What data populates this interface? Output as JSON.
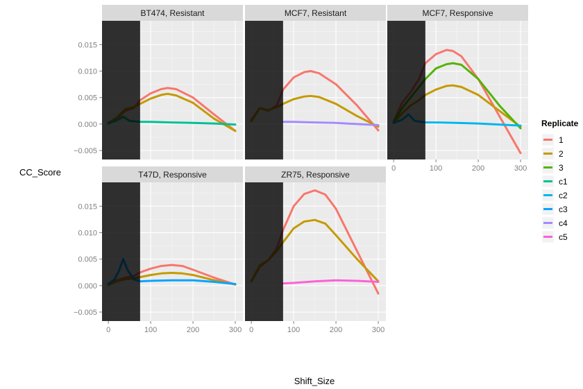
{
  "chart_data": {
    "type": "line",
    "xlabel": "Shift_Size",
    "ylabel": "CC_Score",
    "xlim": [
      -15,
      318
    ],
    "ylim": [
      -0.0067,
      0.0195
    ],
    "x_ticks": [
      0,
      100,
      200,
      300
    ],
    "y_ticks": [
      -0.005,
      0.0,
      0.005,
      0.01,
      0.015
    ],
    "y_tick_labels": [
      "−0.005",
      "0.000",
      "0.005",
      "0.010",
      "0.015"
    ],
    "shaded_region": [
      -15,
      75
    ],
    "grid": true,
    "legend": {
      "title": "Replicate",
      "position": "right",
      "entries": [
        {
          "name": "1",
          "color": "#F8766D"
        },
        {
          "name": "2",
          "color": "#C49A00"
        },
        {
          "name": "3",
          "color": "#53B400"
        },
        {
          "name": "c1",
          "color": "#00C094"
        },
        {
          "name": "c2",
          "color": "#00B6EB"
        },
        {
          "name": "c3",
          "color": "#06A4FF"
        },
        {
          "name": "c4",
          "color": "#A58AFF"
        },
        {
          "name": "c5",
          "color": "#FB61D7"
        }
      ]
    },
    "panels": [
      {
        "title": "BT474, Resistant",
        "series": [
          {
            "name": "1",
            "color": "#F8766D",
            "x": [
              0,
              20,
              40,
              60,
              75,
              100,
              125,
              140,
              160,
              200,
              250,
              300
            ],
            "y": [
              0.0003,
              0.001,
              0.0025,
              0.003,
              0.0045,
              0.0058,
              0.0066,
              0.0068,
              0.0066,
              0.005,
              0.0018,
              -0.0013
            ]
          },
          {
            "name": "2",
            "color": "#C49A00",
            "x": [
              0,
              20,
              40,
              60,
              75,
              100,
              125,
              140,
              160,
              200,
              250,
              300
            ],
            "y": [
              0.0002,
              0.0012,
              0.0028,
              0.0032,
              0.0038,
              0.0048,
              0.0055,
              0.0057,
              0.0054,
              0.004,
              0.001,
              -0.0013
            ]
          },
          {
            "name": "c1",
            "color": "#00C094",
            "x": [
              0,
              20,
              35,
              50,
              75,
              100,
              150,
              200,
              250,
              300
            ],
            "y": [
              0.0001,
              0.0007,
              0.0014,
              0.0006,
              0.0004,
              0.0004,
              0.0003,
              0.0002,
              0.0001,
              -0.0001
            ]
          }
        ]
      },
      {
        "title": "MCF7, Resistant",
        "series": [
          {
            "name": "1",
            "color": "#F8766D",
            "x": [
              0,
              20,
              40,
              60,
              75,
              100,
              125,
              140,
              160,
              200,
              250,
              300
            ],
            "y": [
              0.0008,
              0.003,
              0.0025,
              0.0035,
              0.0065,
              0.0088,
              0.0098,
              0.01,
              0.0096,
              0.0075,
              0.0035,
              -0.0012
            ]
          },
          {
            "name": "2",
            "color": "#C49A00",
            "x": [
              0,
              20,
              40,
              60,
              75,
              100,
              125,
              140,
              160,
              200,
              250,
              300
            ],
            "y": [
              0.0005,
              0.003,
              0.0026,
              0.0032,
              0.0038,
              0.0047,
              0.0052,
              0.0053,
              0.0051,
              0.0038,
              0.0015,
              -0.0005
            ]
          },
          {
            "name": "c4",
            "color": "#A58AFF",
            "x": [
              75,
              100,
              150,
              200,
              250,
              300
            ],
            "y": [
              0.0004,
              0.0004,
              0.0003,
              0.0002,
              0.0,
              -0.0002
            ]
          }
        ]
      },
      {
        "title": "MCF7, Responsive",
        "series": [
          {
            "name": "1",
            "color": "#F8766D",
            "x": [
              0,
              20,
              40,
              60,
              75,
              100,
              125,
              140,
              160,
              200,
              250,
              300
            ],
            "y": [
              0.0005,
              0.004,
              0.006,
              0.0085,
              0.0115,
              0.0132,
              0.014,
              0.0138,
              0.0128,
              0.0085,
              0.0015,
              -0.0055
            ]
          },
          {
            "name": "2",
            "color": "#C49A00",
            "x": [
              0,
              20,
              40,
              60,
              75,
              100,
              125,
              140,
              160,
              200,
              250,
              300
            ],
            "y": [
              0.0002,
              0.002,
              0.0035,
              0.0045,
              0.0055,
              0.0065,
              0.0072,
              0.0073,
              0.007,
              0.0055,
              0.0025,
              -0.0005
            ]
          },
          {
            "name": "3",
            "color": "#53B400",
            "x": [
              0,
              20,
              40,
              60,
              75,
              100,
              125,
              140,
              160,
              200,
              250,
              300
            ],
            "y": [
              0.0003,
              0.003,
              0.005,
              0.007,
              0.0085,
              0.0105,
              0.0113,
              0.0115,
              0.0112,
              0.0085,
              0.0035,
              -0.0008
            ]
          },
          {
            "name": "c2",
            "color": "#00B6EB",
            "x": [
              0,
              20,
              35,
              50,
              75,
              100,
              150,
              200,
              250,
              300
            ],
            "y": [
              0.0002,
              0.0008,
              0.0018,
              0.0006,
              0.0003,
              0.0003,
              0.0002,
              0.0001,
              -0.0001,
              -0.0003
            ]
          }
        ]
      },
      {
        "title": "T47D, Responsive",
        "series": [
          {
            "name": "1",
            "color": "#F8766D",
            "x": [
              0,
              20,
              40,
              60,
              75,
              100,
              125,
              150,
              175,
              200,
              250,
              300
            ],
            "y": [
              0.0002,
              0.001,
              0.0015,
              0.0018,
              0.0025,
              0.0032,
              0.0037,
              0.0039,
              0.0037,
              0.003,
              0.0015,
              0.0002
            ]
          },
          {
            "name": "2",
            "color": "#C49A00",
            "x": [
              0,
              20,
              40,
              60,
              75,
              100,
              125,
              150,
              175,
              200,
              250,
              300
            ],
            "y": [
              0.0001,
              0.0008,
              0.0012,
              0.0014,
              0.0016,
              0.002,
              0.0023,
              0.0024,
              0.0023,
              0.002,
              0.001,
              0.0002
            ]
          },
          {
            "name": "c3",
            "color": "#06A4FF",
            "x": [
              0,
              15,
              25,
              35,
              45,
              60,
              75,
              100,
              150,
              200,
              250,
              300
            ],
            "y": [
              0.0003,
              0.0012,
              0.0028,
              0.005,
              0.003,
              0.0012,
              0.0008,
              0.0009,
              0.001,
              0.001,
              0.0007,
              0.0003
            ]
          }
        ]
      },
      {
        "title": "ZR75, Responsive",
        "series": [
          {
            "name": "1",
            "color": "#F8766D",
            "x": [
              0,
              20,
              40,
              60,
              75,
              100,
              125,
              150,
              175,
              200,
              250,
              300
            ],
            "y": [
              0.0008,
              0.0035,
              0.0048,
              0.007,
              0.0105,
              0.015,
              0.0173,
              0.018,
              0.0172,
              0.0145,
              0.0065,
              -0.0015
            ]
          },
          {
            "name": "2",
            "color": "#C49A00",
            "x": [
              0,
              20,
              40,
              60,
              75,
              100,
              125,
              150,
              175,
              200,
              250,
              300
            ],
            "y": [
              0.0008,
              0.0038,
              0.0048,
              0.0065,
              0.0082,
              0.0108,
              0.0121,
              0.0124,
              0.0117,
              0.0095,
              0.005,
              0.0008
            ]
          },
          {
            "name": "c5",
            "color": "#FB61D7",
            "x": [
              75,
              100,
              150,
              200,
              250,
              300
            ],
            "y": [
              0.0004,
              0.0005,
              0.0008,
              0.001,
              0.0009,
              0.0007
            ]
          }
        ]
      }
    ]
  }
}
